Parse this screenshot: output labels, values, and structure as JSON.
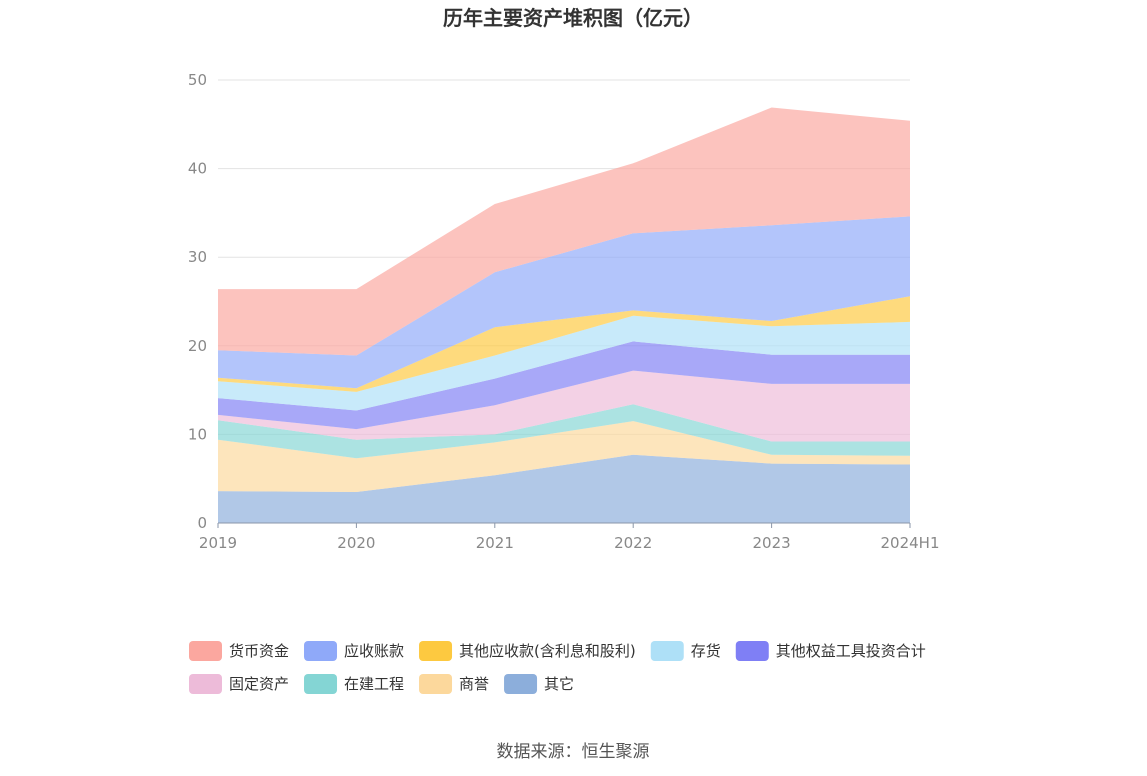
{
  "chart_data": {
    "type": "area",
    "stacked": true,
    "title": "历年主要资产堆积图（亿元）",
    "categories": [
      "2019",
      "2020",
      "2021",
      "2022",
      "2023",
      "2024H1"
    ],
    "ylim": [
      0,
      50
    ],
    "yticks": [
      0,
      10,
      20,
      30,
      40,
      50
    ],
    "grid": true,
    "legend_position": "bottom",
    "series": [
      {
        "name": "其它",
        "color": "#8caedb",
        "values": [
          3.6,
          3.5,
          5.4,
          7.7,
          6.7,
          6.6
        ]
      },
      {
        "name": "商誉",
        "color": "#fcd89c",
        "values": [
          5.8,
          3.8,
          3.7,
          3.8,
          1.0,
          1.0
        ]
      },
      {
        "name": "在建工程",
        "color": "#84d5d4",
        "values": [
          2.2,
          2.1,
          0.9,
          1.9,
          1.5,
          1.6
        ]
      },
      {
        "name": "固定资产",
        "color": "#edbbd9",
        "values": [
          0.6,
          1.2,
          3.3,
          3.8,
          6.5,
          6.5
        ]
      },
      {
        "name": "其他权益工具投资合计",
        "color": "#7f7ff5",
        "values": [
          1.9,
          2.1,
          3.0,
          3.3,
          3.3,
          3.3
        ]
      },
      {
        "name": "存货",
        "color": "#aee0f7",
        "values": [
          1.9,
          2.1,
          2.6,
          2.9,
          3.2,
          3.7
        ]
      },
      {
        "name": "其他应收款(含利息和股利)",
        "color": "#fdc940",
        "values": [
          0.4,
          0.4,
          3.2,
          0.6,
          0.6,
          2.9
        ]
      },
      {
        "name": "应收账款",
        "color": "#8fa9f9",
        "values": [
          3.1,
          3.7,
          6.2,
          8.7,
          10.8,
          9.0
        ]
      },
      {
        "name": "货币资金",
        "color": "#fba79f",
        "values": [
          6.9,
          7.5,
          7.7,
          7.9,
          13.3,
          10.8
        ]
      }
    ],
    "legend_order": [
      "货币资金",
      "应收账款",
      "其他应收款(含利息和股利)",
      "存货",
      "其他权益工具投资合计",
      "固定资产",
      "在建工程",
      "商誉",
      "其它"
    ]
  },
  "source_text": "数据来源：恒生聚源"
}
